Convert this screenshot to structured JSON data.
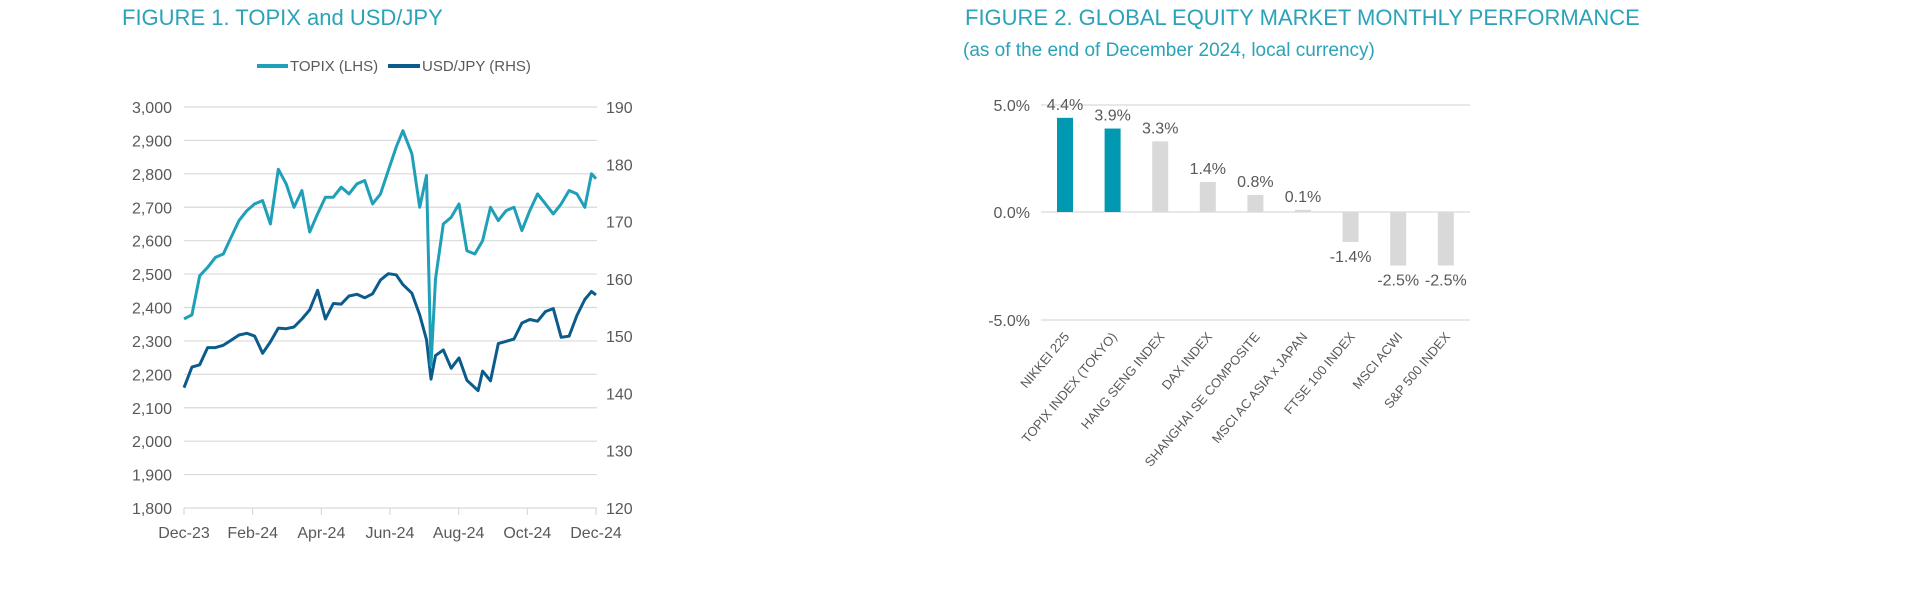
{
  "chart_data": [
    {
      "type": "line",
      "title": "FIGURE 1. TOPIX and USD/JPY",
      "legend_position": "top",
      "grid": true,
      "x_ticks": [
        "Dec-23",
        "Feb-24",
        "Apr-24",
        "Jun-24",
        "Aug-24",
        "Oct-24",
        "Dec-24"
      ],
      "x_range": [
        "2023-12-29",
        "2024-12-30"
      ],
      "y_left": {
        "range": [
          1800,
          3000
        ],
        "ticks": [
          "1,800",
          "1,900",
          "2,000",
          "2,100",
          "2,200",
          "2,300",
          "2,400",
          "2,500",
          "2,600",
          "2,700",
          "2,800",
          "2,900",
          "3,000"
        ]
      },
      "y_right": {
        "range": [
          120,
          190
        ],
        "ticks": [
          "120",
          "130",
          "140",
          "150",
          "160",
          "170",
          "180",
          "190"
        ]
      },
      "series": [
        {
          "name": "TOPIX (LHS)",
          "axis": "left",
          "color": "#1f9fb8",
          "x": [
            "2023-12-29",
            "2024-01-05",
            "2024-01-12",
            "2024-01-19",
            "2024-01-26",
            "2024-02-02",
            "2024-02-09",
            "2024-02-16",
            "2024-02-23",
            "2024-03-01",
            "2024-03-08",
            "2024-03-15",
            "2024-03-22",
            "2024-03-29",
            "2024-04-05",
            "2024-04-12",
            "2024-04-19",
            "2024-04-26",
            "2024-05-03",
            "2024-05-10",
            "2024-05-17",
            "2024-05-24",
            "2024-05-31",
            "2024-06-07",
            "2024-06-14",
            "2024-06-21",
            "2024-06-28",
            "2024-07-05",
            "2024-07-11",
            "2024-07-19",
            "2024-07-26",
            "2024-08-01",
            "2024-08-05",
            "2024-08-09",
            "2024-08-16",
            "2024-08-23",
            "2024-08-30",
            "2024-09-06",
            "2024-09-13",
            "2024-09-20",
            "2024-09-27",
            "2024-10-04",
            "2024-10-11",
            "2024-10-18",
            "2024-10-25",
            "2024-11-01",
            "2024-11-08",
            "2024-11-15",
            "2024-11-22",
            "2024-11-29",
            "2024-12-06",
            "2024-12-13",
            "2024-12-20",
            "2024-12-26",
            "2024-12-30"
          ],
          "values": [
            2366,
            2378,
            2495,
            2520,
            2550,
            2560,
            2610,
            2660,
            2690,
            2710,
            2720,
            2650,
            2814,
            2770,
            2700,
            2750,
            2626,
            2680,
            2730,
            2730,
            2760,
            2740,
            2770,
            2780,
            2710,
            2740,
            2810,
            2880,
            2929,
            2860,
            2700,
            2795,
            2227,
            2485,
            2650,
            2670,
            2710,
            2570,
            2560,
            2600,
            2700,
            2660,
            2690,
            2700,
            2630,
            2690,
            2740,
            2710,
            2680,
            2710,
            2750,
            2740,
            2700,
            2800,
            2785
          ]
        },
        {
          "name": "USD/JPY (RHS)",
          "axis": "right",
          "color": "#0b5c8c",
          "x": [
            "2023-12-29",
            "2024-01-05",
            "2024-01-12",
            "2024-01-19",
            "2024-01-26",
            "2024-02-02",
            "2024-02-09",
            "2024-02-16",
            "2024-02-23",
            "2024-03-01",
            "2024-03-08",
            "2024-03-15",
            "2024-03-22",
            "2024-03-29",
            "2024-04-05",
            "2024-04-12",
            "2024-04-19",
            "2024-04-26",
            "2024-05-03",
            "2024-05-10",
            "2024-05-17",
            "2024-05-24",
            "2024-05-31",
            "2024-06-07",
            "2024-06-14",
            "2024-06-21",
            "2024-06-28",
            "2024-07-05",
            "2024-07-11",
            "2024-07-19",
            "2024-07-26",
            "2024-08-01",
            "2024-08-05",
            "2024-08-09",
            "2024-08-16",
            "2024-08-23",
            "2024-08-30",
            "2024-09-06",
            "2024-09-16",
            "2024-09-20",
            "2024-09-27",
            "2024-10-04",
            "2024-10-11",
            "2024-10-18",
            "2024-10-25",
            "2024-11-01",
            "2024-11-08",
            "2024-11-15",
            "2024-11-22",
            "2024-11-29",
            "2024-12-06",
            "2024-12-13",
            "2024-12-20",
            "2024-12-26",
            "2024-12-30"
          ],
          "values": [
            141,
            144.6,
            145,
            148,
            148,
            148.4,
            149.3,
            150.2,
            150.5,
            150,
            147,
            149,
            151.4,
            151.3,
            151.6,
            153,
            154.6,
            158,
            153,
            155.7,
            155.6,
            157,
            157.3,
            156.7,
            157.4,
            159.8,
            160.9,
            160.7,
            159,
            157.5,
            153.7,
            149.4,
            142.5,
            146.6,
            147.6,
            144.4,
            146.2,
            142.3,
            140.5,
            143.9,
            142.2,
            148.7,
            149.1,
            149.5,
            152.3,
            152.9,
            152.6,
            154.3,
            154.8,
            149.8,
            150,
            153.6,
            156.4,
            157.8,
            157.2
          ]
        }
      ]
    },
    {
      "type": "bar",
      "title": "FIGURE 2. GLOBAL EQUITY MARKET MONTHLY PERFORMANCE",
      "subtitle": "(as of the end of December 2024, local currency)",
      "grid": true,
      "ylim": [
        -5,
        5
      ],
      "y_ticks": [
        "5.0%",
        "0.0%",
        "-5.0%"
      ],
      "categories": [
        "NIKKEI 225",
        "TOPIX INDEX (TOKYO)",
        "HANG SENG INDEX",
        "DAX INDEX",
        "SHANGHAI SE COMPOSITE",
        "MSCI AC ASIA x JAPAN",
        "FTSE 100 INDEX",
        "MSCI ACWI",
        "S&P 500 INDEX"
      ],
      "values": [
        4.4,
        3.9,
        3.3,
        1.4,
        0.8,
        0.1,
        -1.4,
        -2.5,
        -2.5
      ],
      "data_labels": [
        "4.4%",
        "3.9%",
        "3.3%",
        "1.4%",
        "0.8%",
        "0.1%",
        "-1.4%",
        "-2.5%",
        "-2.5%"
      ],
      "highlight_color": "#0099b1",
      "bar_color": "#d9d9d9",
      "highlighted": [
        "NIKKEI 225",
        "TOPIX INDEX (TOKYO)"
      ]
    }
  ]
}
